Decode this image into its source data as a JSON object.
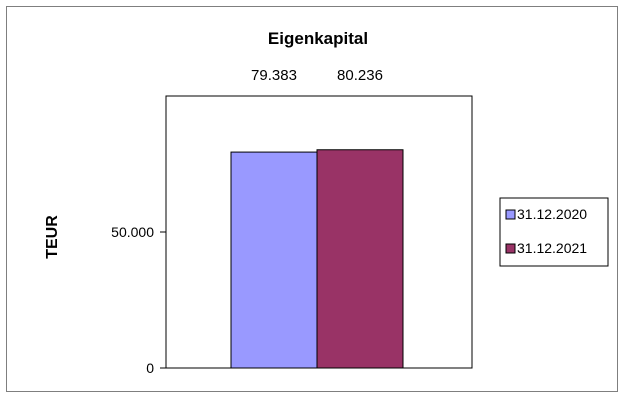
{
  "chart_data": {
    "type": "bar",
    "title": "Eigenkapital",
    "xlabel": "",
    "ylabel": "TEUR",
    "ylim": [
      0,
      100000
    ],
    "yticks": [
      0,
      50000
    ],
    "ytick_labels": [
      "0",
      "50.000"
    ],
    "grid": false,
    "legend_position": "right",
    "series": [
      {
        "name": "31.12.2020",
        "values": [
          79383
        ],
        "label": "79.383",
        "color": "#9999ff"
      },
      {
        "name": "31.12.2021",
        "values": [
          80236
        ],
        "label": "80.236",
        "color": "#993366"
      }
    ]
  }
}
